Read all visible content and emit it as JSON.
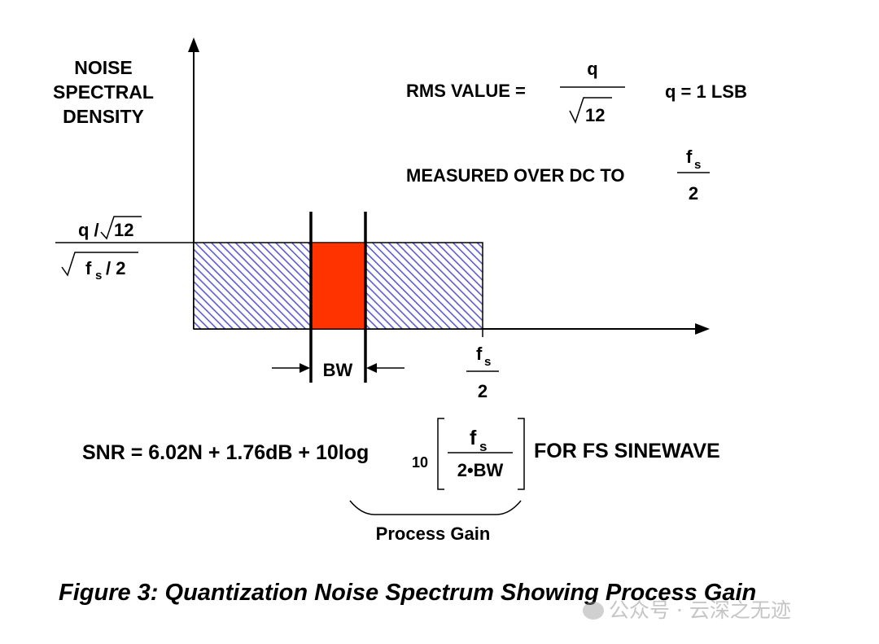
{
  "ylabel": {
    "line1": "NOISE",
    "line2": "SPECTRAL",
    "line3": "DENSITY"
  },
  "rms": {
    "label": "RMS VALUE =",
    "numerator": "q",
    "denominator": "12",
    "note": "q = 1 LSB"
  },
  "measured": {
    "label": "MEASURED OVER DC TO",
    "numerator": "f",
    "subscript": "s",
    "denominator": "2"
  },
  "density": {
    "numerator": "q /",
    "numerator_root": "12",
    "denominator_f": "f",
    "denominator_sub": "s",
    "denominator_rest": "/ 2"
  },
  "bw_label": "BW",
  "x_end": {
    "numerator": "f",
    "subscript": "s",
    "denominator": "2"
  },
  "snr": {
    "lhs": "SNR = 6.02N + 1.76dB + 10log",
    "log_base": "10",
    "frac_numerator": "f",
    "frac_subscript": "s",
    "frac_denominator": "2•BW",
    "rhs": "FOR FS SINEWAVE"
  },
  "process_gain": "Process Gain",
  "caption": "Figure 3: Quantization Noise Spectrum Showing Process Gain",
  "watermark": "公众号 · 云深之无迹",
  "colors": {
    "hatch": "#5b5bd6",
    "bw_fill": "#ff3300",
    "ink": "#000000"
  }
}
